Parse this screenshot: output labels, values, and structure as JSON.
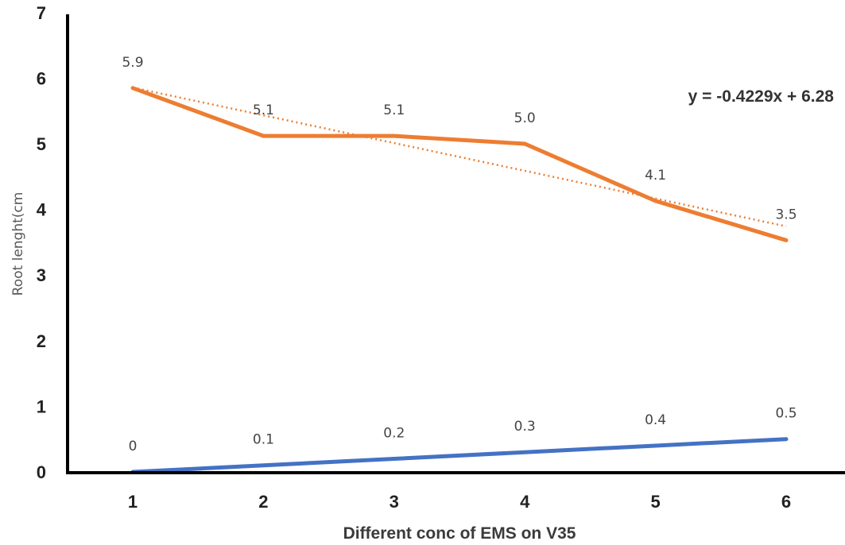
{
  "chart_data": {
    "type": "line",
    "xlabel": "Different conc of EMS on V35",
    "ylabel": "Root lenght(cm",
    "x": [
      1,
      2,
      3,
      4,
      5,
      6
    ],
    "x_tick_labels": [
      "1",
      "2",
      "3",
      "4",
      "5",
      "6"
    ],
    "y_tick_labels": [
      "0",
      "1",
      "2",
      "3",
      "4",
      "5",
      "6",
      "7"
    ],
    "ylim": [
      0,
      7
    ],
    "grid": false,
    "series": [
      {
        "color": "#ED7D31",
        "values": [
          5.85,
          5.12,
          5.12,
          5.0,
          4.13,
          3.53
        ],
        "data_labels": [
          "5.9",
          "5.1",
          "5.1",
          "5.0",
          "4.1",
          "3.5"
        ]
      },
      {
        "color": "#4472C4",
        "values": [
          0,
          0.1,
          0.2,
          0.3,
          0.4,
          0.5
        ],
        "data_labels": [
          "0",
          "0.1",
          "0.2",
          "0.3",
          "0.4",
          "0.5"
        ]
      }
    ],
    "trendline": {
      "series_index": 0,
      "type": "linear",
      "style": "dotted",
      "color": "#ED7D31",
      "slope": -0.4229,
      "intercept": 6.28,
      "equation_label": "y = -0.4229x + 6.28"
    }
  }
}
